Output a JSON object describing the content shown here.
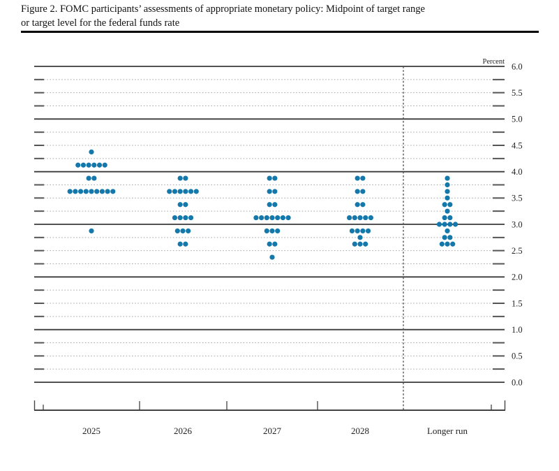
{
  "figure": {
    "title_line1": "Figure 2. FOMC participants’ assessments of appropriate monetary policy: Midpoint of target range",
    "title_line2": "or target level for the federal funds rate"
  },
  "chart_data": {
    "type": "scatter",
    "subtype": "fomc-dot-plot",
    "title": "Figure 2. FOMC participants’ assessments of appropriate monetary policy: Midpoint of target range or target level for the federal funds rate",
    "unit_label": "Percent",
    "categories": [
      "2025",
      "2026",
      "2027",
      "2028",
      "Longer run"
    ],
    "ylim": [
      0.0,
      6.0
    ],
    "y_major_step": 1.0,
    "y_minor_step": 0.25,
    "y_tick_labels": [
      "6.0",
      "5.5",
      "5.0",
      "4.5",
      "4.0",
      "3.5",
      "3.0",
      "2.5",
      "2.0",
      "1.5",
      "1.0",
      "0.5",
      "0.0"
    ],
    "grid": "solid lines at integers, dotted lines at quarter percents",
    "legend_position": "none",
    "dot_color": "#1578ab",
    "separator_after_category": "2028",
    "series": [
      {
        "name": "2025",
        "dots": [
          {
            "value": 4.375,
            "count": 1
          },
          {
            "value": 4.125,
            "count": 6
          },
          {
            "value": 3.875,
            "count": 2
          },
          {
            "value": 3.625,
            "count": 9
          },
          {
            "value": 2.875,
            "count": 1
          }
        ]
      },
      {
        "name": "2026",
        "dots": [
          {
            "value": 3.875,
            "count": 2
          },
          {
            "value": 3.625,
            "count": 6
          },
          {
            "value": 3.375,
            "count": 2
          },
          {
            "value": 3.125,
            "count": 4
          },
          {
            "value": 2.875,
            "count": 3
          },
          {
            "value": 2.625,
            "count": 2
          }
        ]
      },
      {
        "name": "2027",
        "dots": [
          {
            "value": 3.875,
            "count": 2
          },
          {
            "value": 3.625,
            "count": 2
          },
          {
            "value": 3.375,
            "count": 2
          },
          {
            "value": 3.125,
            "count": 7
          },
          {
            "value": 2.875,
            "count": 3
          },
          {
            "value": 2.625,
            "count": 2
          },
          {
            "value": 2.375,
            "count": 1
          }
        ]
      },
      {
        "name": "2028",
        "dots": [
          {
            "value": 3.875,
            "count": 2
          },
          {
            "value": 3.625,
            "count": 2
          },
          {
            "value": 3.375,
            "count": 2
          },
          {
            "value": 3.125,
            "count": 5
          },
          {
            "value": 2.875,
            "count": 4
          },
          {
            "value": 2.75,
            "count": 1
          },
          {
            "value": 2.625,
            "count": 3
          }
        ]
      },
      {
        "name": "Longer run",
        "dots": [
          {
            "value": 3.875,
            "count": 1
          },
          {
            "value": 3.75,
            "count": 1
          },
          {
            "value": 3.625,
            "count": 1
          },
          {
            "value": 3.5,
            "count": 1
          },
          {
            "value": 3.375,
            "count": 2
          },
          {
            "value": 3.25,
            "count": 1
          },
          {
            "value": 3.125,
            "count": 2
          },
          {
            "value": 3.0,
            "count": 4
          },
          {
            "value": 2.875,
            "count": 1
          },
          {
            "value": 2.75,
            "count": 2
          },
          {
            "value": 2.625,
            "count": 3
          }
        ]
      }
    ]
  }
}
